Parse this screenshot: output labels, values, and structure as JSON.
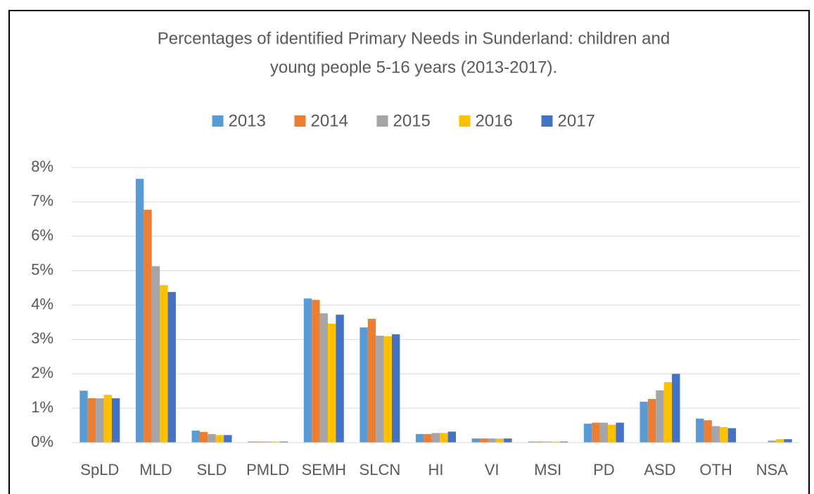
{
  "chart_data": {
    "type": "bar",
    "title": [
      "Percentages of identified Primary Needs in Sunderland: children and",
      "young people 5-16 years (2013-2017)."
    ],
    "categories": [
      "SpLD",
      "MLD",
      "SLD",
      "PMLD",
      "SEMH",
      "SLCN",
      "HI",
      "VI",
      "MSI",
      "PD",
      "ASD",
      "OTH",
      "NSA"
    ],
    "series": [
      {
        "name": "2013",
        "color": "#5b9bd5",
        "values": [
          1.51,
          7.67,
          0.35,
          0.03,
          4.19,
          3.35,
          0.25,
          0.12,
          0.03,
          0.55,
          1.19,
          0.7,
          0
        ]
      },
      {
        "name": "2014",
        "color": "#ed7d31",
        "values": [
          1.29,
          6.77,
          0.31,
          0.03,
          4.15,
          3.6,
          0.25,
          0.12,
          0.03,
          0.58,
          1.27,
          0.65,
          0
        ]
      },
      {
        "name": "2015",
        "color": "#a5a5a5",
        "values": [
          1.29,
          5.13,
          0.25,
          0.03,
          3.76,
          3.11,
          0.28,
          0.12,
          0.03,
          0.58,
          1.52,
          0.48,
          0.06
        ]
      },
      {
        "name": "2016",
        "color": "#ffc000",
        "values": [
          1.39,
          4.58,
          0.22,
          0.03,
          3.46,
          3.09,
          0.28,
          0.12,
          0.03,
          0.52,
          1.76,
          0.45,
          0.1
        ]
      },
      {
        "name": "2017",
        "color": "#4472c4",
        "values": [
          1.29,
          4.38,
          0.22,
          0.03,
          3.72,
          3.15,
          0.32,
          0.12,
          0.03,
          0.58,
          2.0,
          0.42,
          0.1
        ]
      }
    ],
    "ylim": [
      0,
      8
    ],
    "yticks": [
      {
        "value": 0,
        "label": "0%"
      },
      {
        "value": 1,
        "label": "1%"
      },
      {
        "value": 2,
        "label": "2%"
      },
      {
        "value": 3,
        "label": "3%"
      },
      {
        "value": 4,
        "label": "4%"
      },
      {
        "value": 5,
        "label": "5%"
      },
      {
        "value": 6,
        "label": "6%"
      },
      {
        "value": 7,
        "label": "7%"
      },
      {
        "value": 8,
        "label": "8%"
      }
    ],
    "grid": true,
    "legend": "top"
  }
}
